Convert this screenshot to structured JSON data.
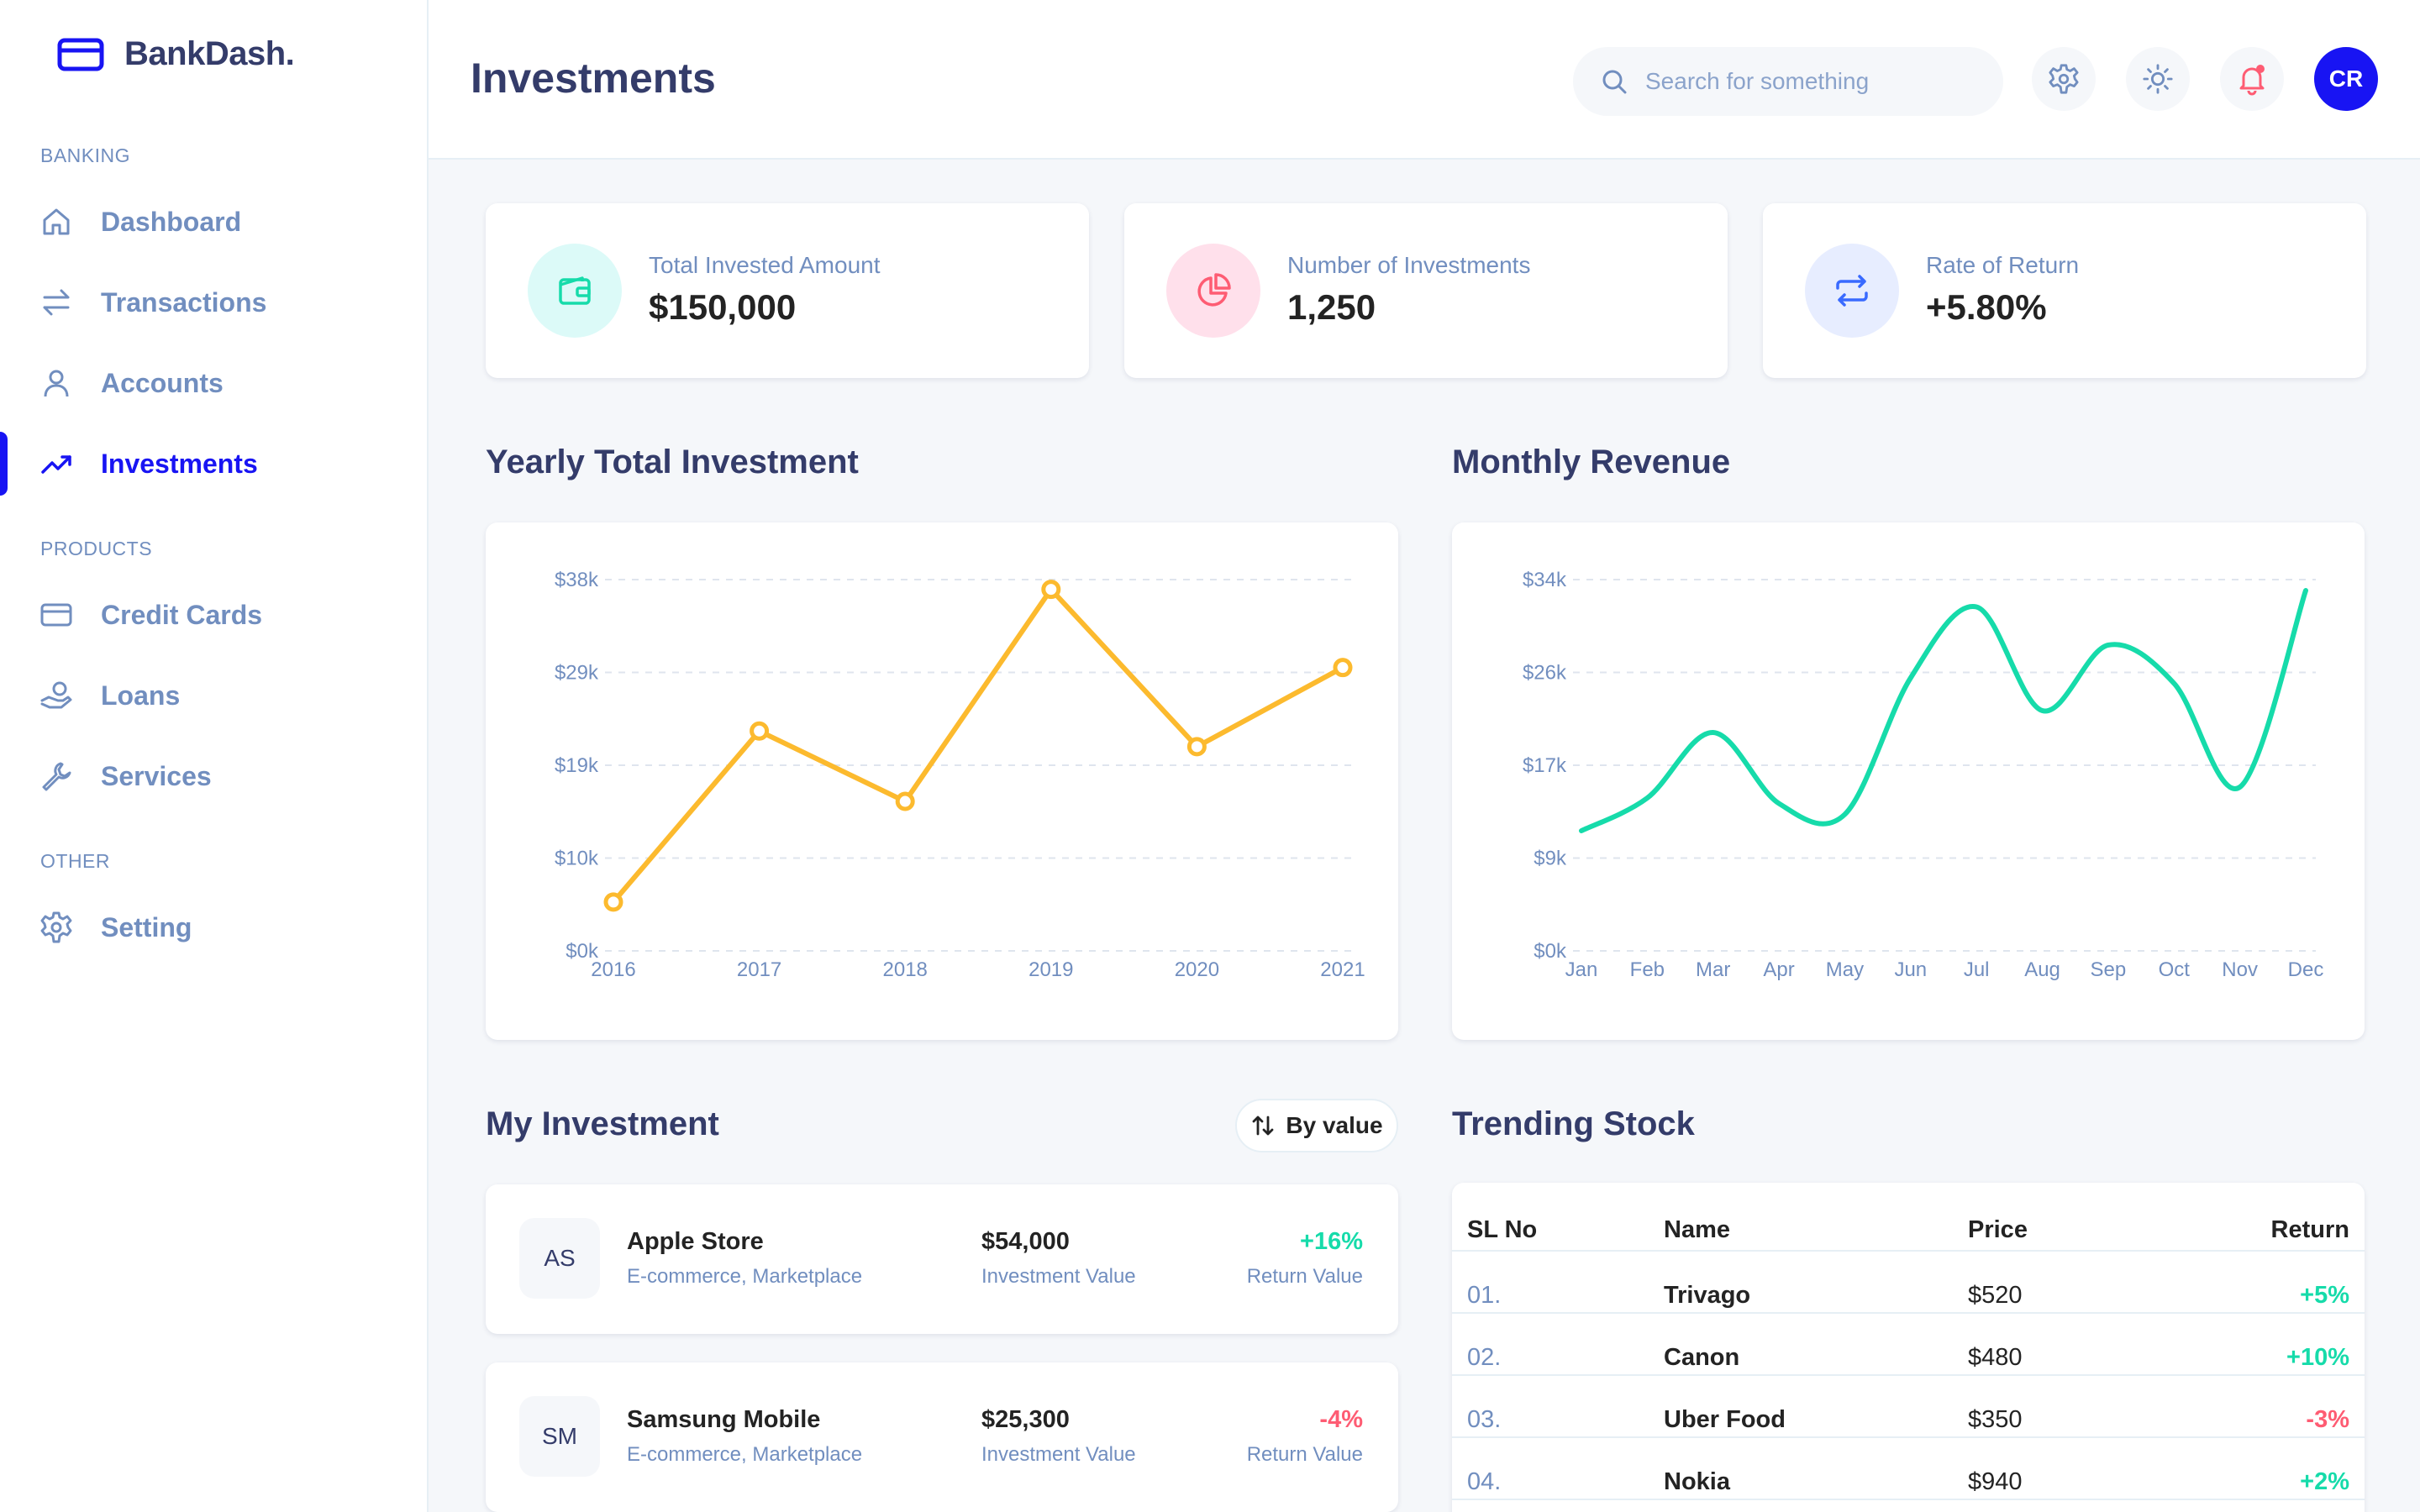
{
  "brand": {
    "name": "BankDash."
  },
  "nav": {
    "sections": [
      {
        "label": "BANKING"
      },
      {
        "label": "PRODUCTS"
      },
      {
        "label": "OTHER"
      }
    ],
    "items": [
      {
        "label": "Dashboard",
        "icon": "home-icon"
      },
      {
        "label": "Transactions",
        "icon": "transfer-icon"
      },
      {
        "label": "Accounts",
        "icon": "user-icon"
      },
      {
        "label": "Investments",
        "icon": "trend-icon",
        "active": true
      },
      {
        "label": "Credit Cards",
        "icon": "credit-card-icon"
      },
      {
        "label": "Loans",
        "icon": "loan-icon"
      },
      {
        "label": "Services",
        "icon": "wrench-icon"
      },
      {
        "label": "Setting",
        "icon": "gear-icon"
      }
    ]
  },
  "header": {
    "title": "Investments",
    "search_placeholder": "Search for something",
    "avatar_initials": "CR"
  },
  "stats": [
    {
      "label": "Total Invested Amount",
      "value": "$150,000",
      "icon": "wallet-icon",
      "color": "#16DBAA"
    },
    {
      "label": "Number of Investments",
      "value": "1,250",
      "icon": "pie-icon",
      "color": "#FE5C73"
    },
    {
      "label": "Rate of Return",
      "value": "+5.80%",
      "icon": "repeat-icon",
      "color": "#396AFF"
    }
  ],
  "sections": {
    "yearly": "Yearly Total Investment",
    "monthly": "Monthly Revenue",
    "my_investment": "My Investment",
    "trending": "Trending Stock",
    "sort_label": "By value"
  },
  "chart_data": [
    {
      "type": "line",
      "title": "Yearly Total Investment",
      "x": [
        "2016",
        "2017",
        "2018",
        "2019",
        "2020",
        "2021"
      ],
      "values": [
        5000,
        22500,
        15300,
        37000,
        20900,
        29000
      ],
      "y_ticks": [
        "$0k",
        "$10k",
        "$19k",
        "$29k",
        "$38k"
      ],
      "ylim": [
        0,
        38000
      ],
      "color": "#FCBA2E",
      "grid": true
    },
    {
      "type": "line",
      "title": "Monthly Revenue",
      "x": [
        "Jan",
        "Feb",
        "Mar",
        "Apr",
        "May",
        "Jun",
        "Jul",
        "Aug",
        "Sep",
        "Oct",
        "Nov",
        "Dec"
      ],
      "values": [
        11000,
        14000,
        20000,
        13500,
        12500,
        25000,
        31500,
        22000,
        28000,
        24500,
        15000,
        33000
      ],
      "y_ticks": [
        "$0k",
        "$9k",
        "$17k",
        "$26k",
        "$34k"
      ],
      "ylim": [
        0,
        34000
      ],
      "color": "#16DBAA",
      "grid": true
    }
  ],
  "investments": [
    {
      "abbr": "AS",
      "name": "Apple Store",
      "category": "E-commerce, Marketplace",
      "value": "$54,000",
      "value_label": "Investment Value",
      "return": "+16%",
      "return_label": "Return Value",
      "positive": true
    },
    {
      "abbr": "SM",
      "name": "Samsung Mobile",
      "category": "E-commerce, Marketplace",
      "value": "$25,300",
      "value_label": "Investment Value",
      "return": "-4%",
      "return_label": "Return Value",
      "positive": false
    }
  ],
  "stocks": {
    "headers": [
      "SL No",
      "Name",
      "Price",
      "Return"
    ],
    "rows": [
      {
        "no": "01.",
        "name": "Trivago",
        "price": "$520",
        "ret": "+5%",
        "positive": true
      },
      {
        "no": "02.",
        "name": "Canon",
        "price": "$480",
        "ret": "+10%",
        "positive": true
      },
      {
        "no": "03.",
        "name": "Uber Food",
        "price": "$350",
        "ret": "-3%",
        "positive": false
      },
      {
        "no": "04.",
        "name": "Nokia",
        "price": "$940",
        "ret": "+2%",
        "positive": true
      }
    ]
  },
  "colors": {
    "primary": "#1814F3",
    "positive": "#16DBAA",
    "negative": "#FE5C73",
    "muted": "#718EBF",
    "heading": "#343C6A"
  }
}
